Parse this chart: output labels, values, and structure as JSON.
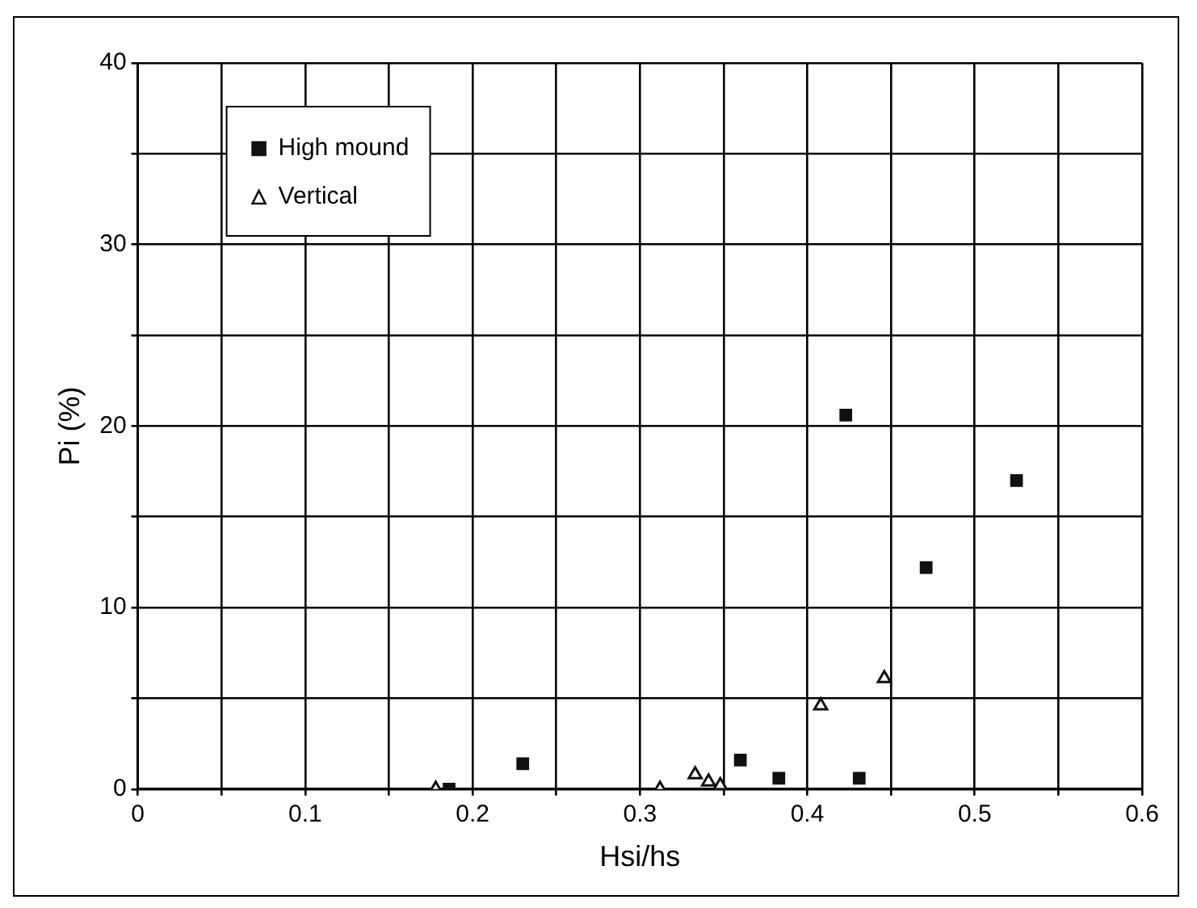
{
  "chart_data": {
    "type": "scatter",
    "xlabel": "Hsi/hs",
    "ylabel": "Pi (%)",
    "xlim": [
      0,
      0.6
    ],
    "xticks": [
      0,
      {
        "value": 0.05,
        "label": null
      },
      0.1,
      {
        "value": 0.15,
        "label": null
      },
      0.2,
      {
        "value": 0.25,
        "label": null
      },
      0.3,
      {
        "value": 0.35,
        "label": null
      },
      0.4,
      {
        "value": 0.45,
        "label": null
      },
      0.5,
      {
        "value": 0.55,
        "label": null
      },
      0.6
    ],
    "ylim": [
      0,
      40
    ],
    "yticks": [
      0,
      {
        "value": 5,
        "label": null
      },
      10,
      {
        "value": 15,
        "label": null
      },
      20,
      {
        "value": 25,
        "label": null
      },
      30,
      {
        "value": 35,
        "label": null
      },
      40
    ],
    "grid": true,
    "legend": "top left",
    "series": [
      {
        "name": "High mound",
        "color": "#111111",
        "marker": "square",
        "x": [
          0.186,
          0.23,
          0.36,
          0.383,
          0.423,
          0.431,
          0.471,
          0.525
        ],
        "values": [
          0,
          1.4,
          1.6,
          0.6,
          20.6,
          0.6,
          12.2,
          17.0
        ]
      },
      {
        "name": "Vertical",
        "color": "#111111",
        "marker": "triangle",
        "x": [
          0.178,
          0.312,
          0.333,
          0.341,
          0.348,
          0.408,
          0.446
        ],
        "values": [
          0,
          0,
          0.8,
          0.4,
          0.2,
          4.6,
          6.1
        ]
      }
    ]
  }
}
